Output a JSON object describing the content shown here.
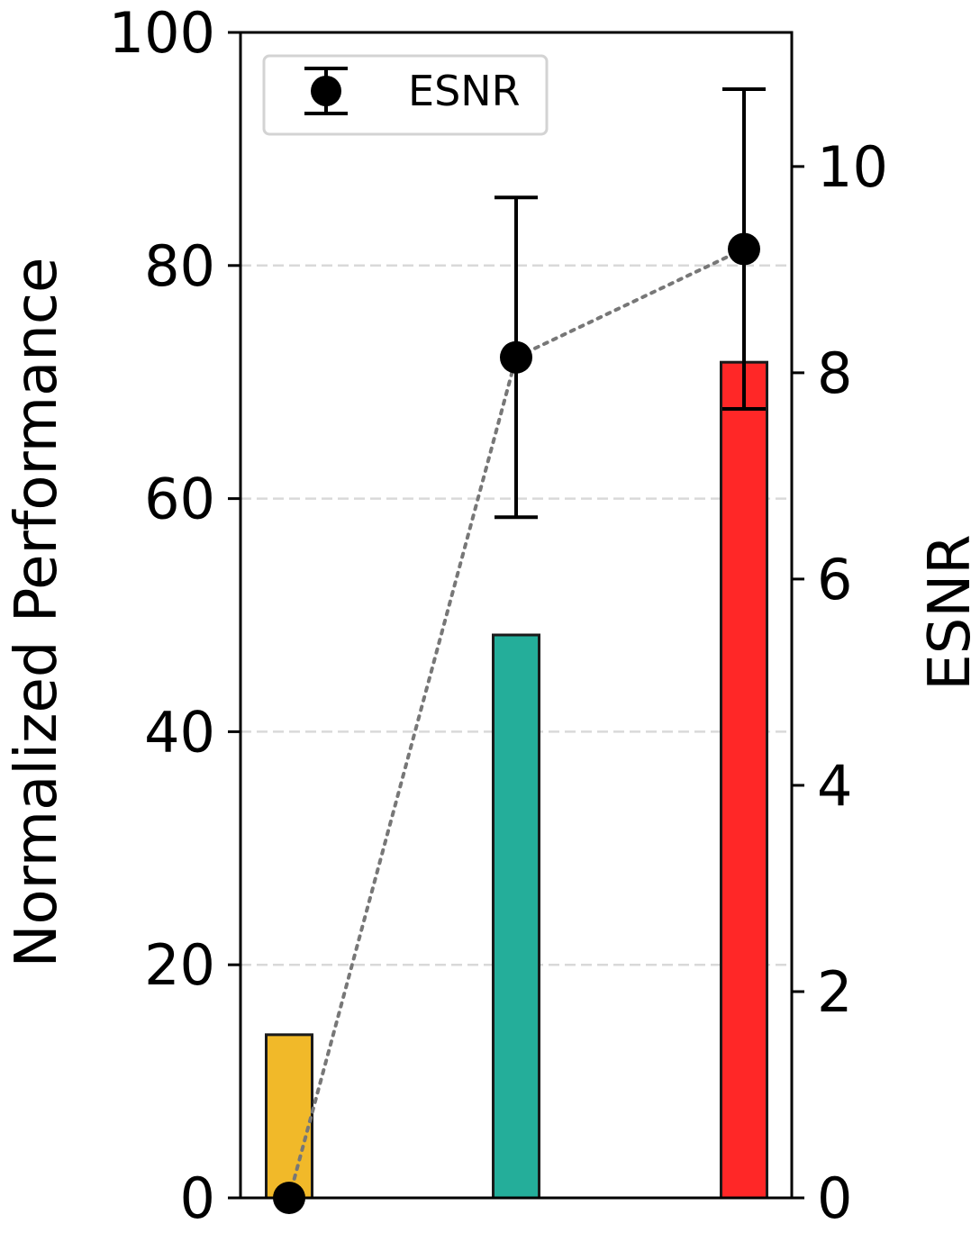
{
  "chart_data": {
    "type": "bar",
    "categories": [
      "",
      "",
      ""
    ],
    "bars": {
      "values": [
        14,
        48.3,
        71.7
      ],
      "colors": [
        "#f1b929",
        "#24ae9a",
        "#ff2727"
      ]
    },
    "esnr": {
      "name": "ESNR",
      "values": [
        0,
        8.15,
        9.2
      ],
      "errors_lower": [
        0,
        1.55,
        1.55
      ],
      "errors_upper": [
        0,
        1.55,
        1.55
      ],
      "line_style": "dotted",
      "line_color": "#777777"
    },
    "ylabel": "Normalized Performance",
    "ylim": [
      0,
      100
    ],
    "yticks": [
      "0",
      "20",
      "40",
      "60",
      "80",
      "100"
    ],
    "y2label": "ESNR",
    "y2lim": [
      0,
      11.3
    ],
    "y2ticks": [
      "0",
      "2",
      "4",
      "6",
      "8",
      "10"
    ],
    "grid": "horizontal dashed",
    "legend": {
      "placement": "top-left",
      "entries": [
        "ESNR"
      ]
    }
  }
}
